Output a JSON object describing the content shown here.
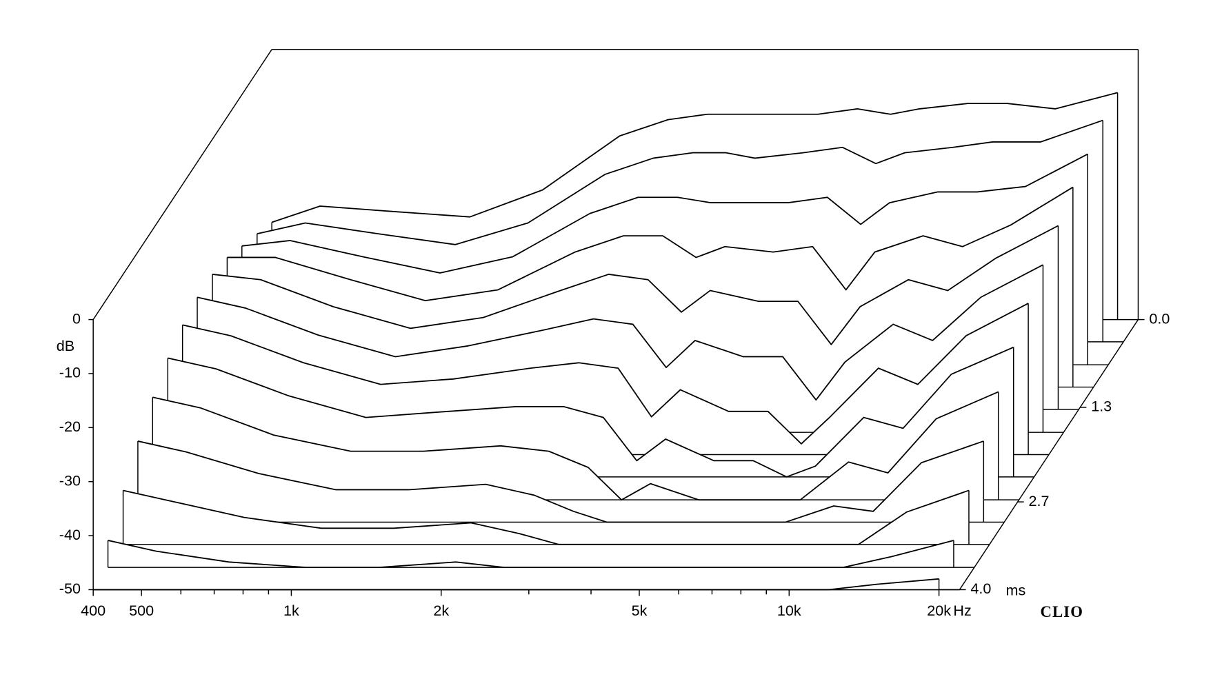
{
  "chart_data": {
    "type": "waterfall",
    "brand": "CLIO",
    "y_label": "dB",
    "x_label": "Hz",
    "z_label": "ms",
    "x_log": true,
    "color": "#000000",
    "xlim": [
      400,
      22000
    ],
    "xticks": [
      400,
      500,
      {
        "value": 1000,
        "label": "1k"
      },
      {
        "value": 2000,
        "label": "2k"
      },
      {
        "value": 5000,
        "label": "5k"
      },
      {
        "value": 10000,
        "label": "10k"
      },
      {
        "value": 20000,
        "label": "20k"
      }
    ],
    "xminorticks": [
      600,
      700,
      800,
      900,
      3000,
      4000,
      6000,
      7000,
      8000,
      9000
    ],
    "ylim": [
      -50,
      0
    ],
    "yticks": [
      0,
      -10,
      -20,
      -30,
      -40,
      -50
    ],
    "zlim": [
      0,
      4
    ],
    "zticks": [
      {
        "value": 0,
        "label": "0.0"
      },
      1.3,
      2.7,
      {
        "value": 4,
        "label": "4.0"
      }
    ],
    "x": [
      400,
      500,
      700,
      1000,
      1400,
      2000,
      2500,
      3000,
      3500,
      4000,
      5000,
      6000,
      7000,
      8000,
      10000,
      12000,
      15000,
      20000
    ],
    "series": [
      {
        "time": 0,
        "values": [
          -32,
          -29,
          -30,
          -31,
          -26,
          -16,
          -13,
          -12,
          -12,
          -12,
          -12,
          -11,
          -12,
          -11,
          -10,
          -10,
          -11,
          -8
        ]
      },
      {
        "time": 0.33,
        "values": [
          -30,
          -28,
          -30,
          -32,
          -28,
          -19,
          -16,
          -15,
          -15,
          -16,
          -15,
          -14,
          -17,
          -15,
          -14,
          -13,
          -13,
          -9
        ]
      },
      {
        "time": 0.67,
        "values": [
          -28,
          -27,
          -30,
          -33,
          -30,
          -22,
          -19,
          -19,
          -20,
          -20,
          -20,
          -19,
          -24,
          -20,
          -18,
          -18,
          -17,
          -11
        ]
      },
      {
        "time": 1.0,
        "values": [
          -26,
          -26,
          -30,
          -34,
          -32,
          -25,
          -22,
          -22,
          -26,
          -24,
          -25,
          -24,
          -32,
          -25,
          -22,
          -24,
          -20,
          -13
        ]
      },
      {
        "time": 1.33,
        "values": [
          -25,
          -26,
          -31,
          -35,
          -33,
          -28,
          -25,
          -26,
          -32,
          -28,
          -30,
          -30,
          -38,
          -31,
          -26,
          -28,
          -22,
          -16
        ]
      },
      {
        "time": 1.67,
        "values": [
          -25,
          -27,
          -32,
          -36,
          -34,
          -31,
          -29,
          -30,
          -38,
          -33,
          -36,
          -36,
          -44,
          -37,
          -30,
          -33,
          -25,
          -19
        ]
      },
      {
        "time": 2.0,
        "values": [
          -26,
          -28,
          -33,
          -37,
          -36,
          -34,
          -33,
          -34,
          -43,
          -38,
          -42,
          -42,
          -48,
          -43,
          -34,
          -37,
          -28,
          -22
        ]
      },
      {
        "time": 2.33,
        "values": [
          -28,
          -30,
          -35,
          -39,
          -38,
          -37,
          -37,
          -39,
          -47,
          -43,
          -47,
          -47,
          -50,
          -48,
          -39,
          -41,
          -31,
          -26
        ]
      },
      {
        "time": 2.67,
        "values": [
          -31,
          -33,
          -38,
          -41,
          -41,
          -40,
          -41,
          -44,
          -50,
          -47,
          -50,
          -50,
          -50,
          -50,
          -43,
          -45,
          -35,
          -30
        ]
      },
      {
        "time": 3.0,
        "values": [
          -35,
          -37,
          -41,
          -44,
          -44,
          -43,
          -45,
          -48,
          -50,
          -50,
          -50,
          -50,
          -50,
          -50,
          -47,
          -48,
          -39,
          -35
        ]
      },
      {
        "time": 3.33,
        "values": [
          -40,
          -42,
          -45,
          -47,
          -47,
          -46,
          -48,
          -50,
          -50,
          -50,
          -50,
          -50,
          -50,
          -50,
          -50,
          -50,
          -44,
          -40
        ]
      },
      {
        "time": 3.67,
        "values": [
          -45,
          -47,
          -49,
          -50,
          -50,
          -49,
          -50,
          -50,
          -50,
          -50,
          -50,
          -50,
          -50,
          -50,
          -50,
          -50,
          -48,
          -45
        ]
      },
      {
        "time": 4.0,
        "values": [
          -50,
          -50,
          -50,
          -50,
          -50,
          -50,
          -50,
          -50,
          -50,
          -50,
          -50,
          -50,
          -50,
          -50,
          -50,
          -50,
          -49,
          -48
        ]
      }
    ]
  }
}
